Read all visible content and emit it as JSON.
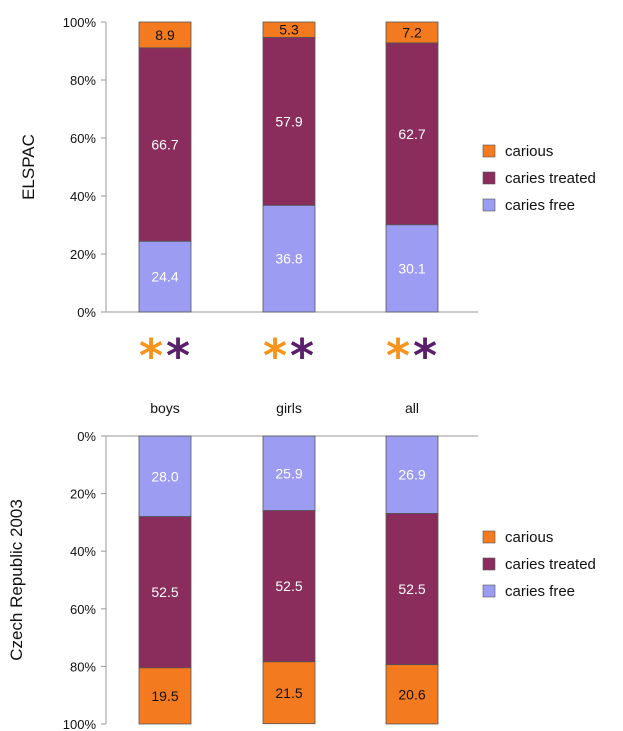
{
  "colors": {
    "carious": "#f47a1f",
    "caries_treated": "#8b2d5c",
    "caries_free": "#9b9cf2",
    "star_orange": "#f7941d",
    "star_purple": "#5a1f6b",
    "axis": "#999999"
  },
  "categories": [
    "boys",
    "girls",
    "all"
  ],
  "star_glyph": "*",
  "chart_data": [
    {
      "type": "bar",
      "stacked": true,
      "ylabel": "ELSPAC",
      "yticks": [
        "0%",
        "20%",
        "40%",
        "60%",
        "80%",
        "100%"
      ],
      "ylim": [
        0,
        100
      ],
      "orientation": "bottom-up",
      "categories": [
        "boys",
        "girls",
        "all"
      ],
      "series": [
        {
          "name": "caries free",
          "key": "caries_free",
          "values": [
            24.4,
            36.8,
            30.1
          ]
        },
        {
          "name": "caries treated",
          "key": "caries_treated",
          "values": [
            66.7,
            57.9,
            62.7
          ]
        },
        {
          "name": "carious",
          "key": "carious",
          "values": [
            8.9,
            5.3,
            7.2
          ]
        }
      ],
      "legend": [
        "carious",
        "caries treated",
        "caries free"
      ],
      "legend_position": "right"
    },
    {
      "type": "bar",
      "stacked": true,
      "ylabel": "Czech Republic 2003",
      "yticks": [
        "0%",
        "20%",
        "40%",
        "60%",
        "80%",
        "100%"
      ],
      "ylim": [
        0,
        100
      ],
      "orientation": "top-down",
      "categories": [
        "boys",
        "girls",
        "all"
      ],
      "series": [
        {
          "name": "caries free",
          "key": "caries_free",
          "values": [
            28.0,
            25.9,
            26.9
          ]
        },
        {
          "name": "caries treated",
          "key": "caries_treated",
          "values": [
            52.5,
            52.5,
            52.5
          ]
        },
        {
          "name": "carious",
          "key": "carious",
          "values": [
            19.5,
            21.5,
            20.6
          ]
        }
      ],
      "legend": [
        "carious",
        "caries treated",
        "caries free"
      ],
      "legend_position": "right"
    }
  ]
}
